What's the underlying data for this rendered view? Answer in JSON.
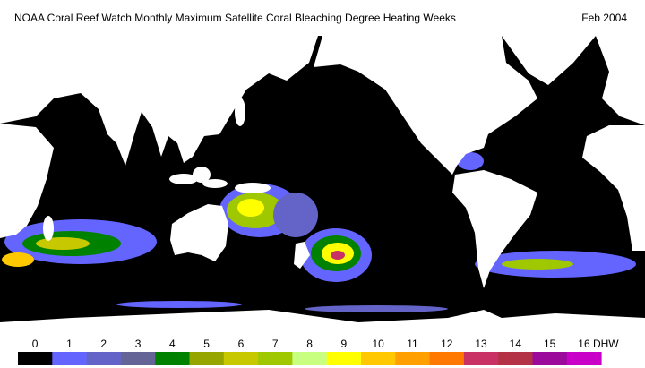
{
  "header": {
    "title": "NOAA Coral Reef Watch Monthly Maximum Satellite Coral Bleaching Degree Heating Weeks",
    "date": "Feb 2004"
  },
  "legend": {
    "unit": "DHW",
    "items": [
      {
        "value": 0,
        "color": "#000000"
      },
      {
        "value": 1,
        "color": "#6464ff"
      },
      {
        "value": 2,
        "color": "#6464c8"
      },
      {
        "value": 3,
        "color": "#646496"
      },
      {
        "value": 4,
        "color": "#008200"
      },
      {
        "value": 5,
        "color": "#96a500"
      },
      {
        "value": 6,
        "color": "#c8c800"
      },
      {
        "value": 7,
        "color": "#a0c800"
      },
      {
        "value": 8,
        "color": "#c8ff80"
      },
      {
        "value": 9,
        "color": "#ffff00"
      },
      {
        "value": 10,
        "color": "#ffc800"
      },
      {
        "value": 11,
        "color": "#ffa000"
      },
      {
        "value": 12,
        "color": "#ff7800"
      },
      {
        "value": 13,
        "color": "#c83264"
      },
      {
        "value": 14,
        "color": "#b43246"
      },
      {
        "value": 15,
        "color": "#9b0a9b"
      },
      {
        "value": 16,
        "color": "#c800c8"
      }
    ]
  }
}
